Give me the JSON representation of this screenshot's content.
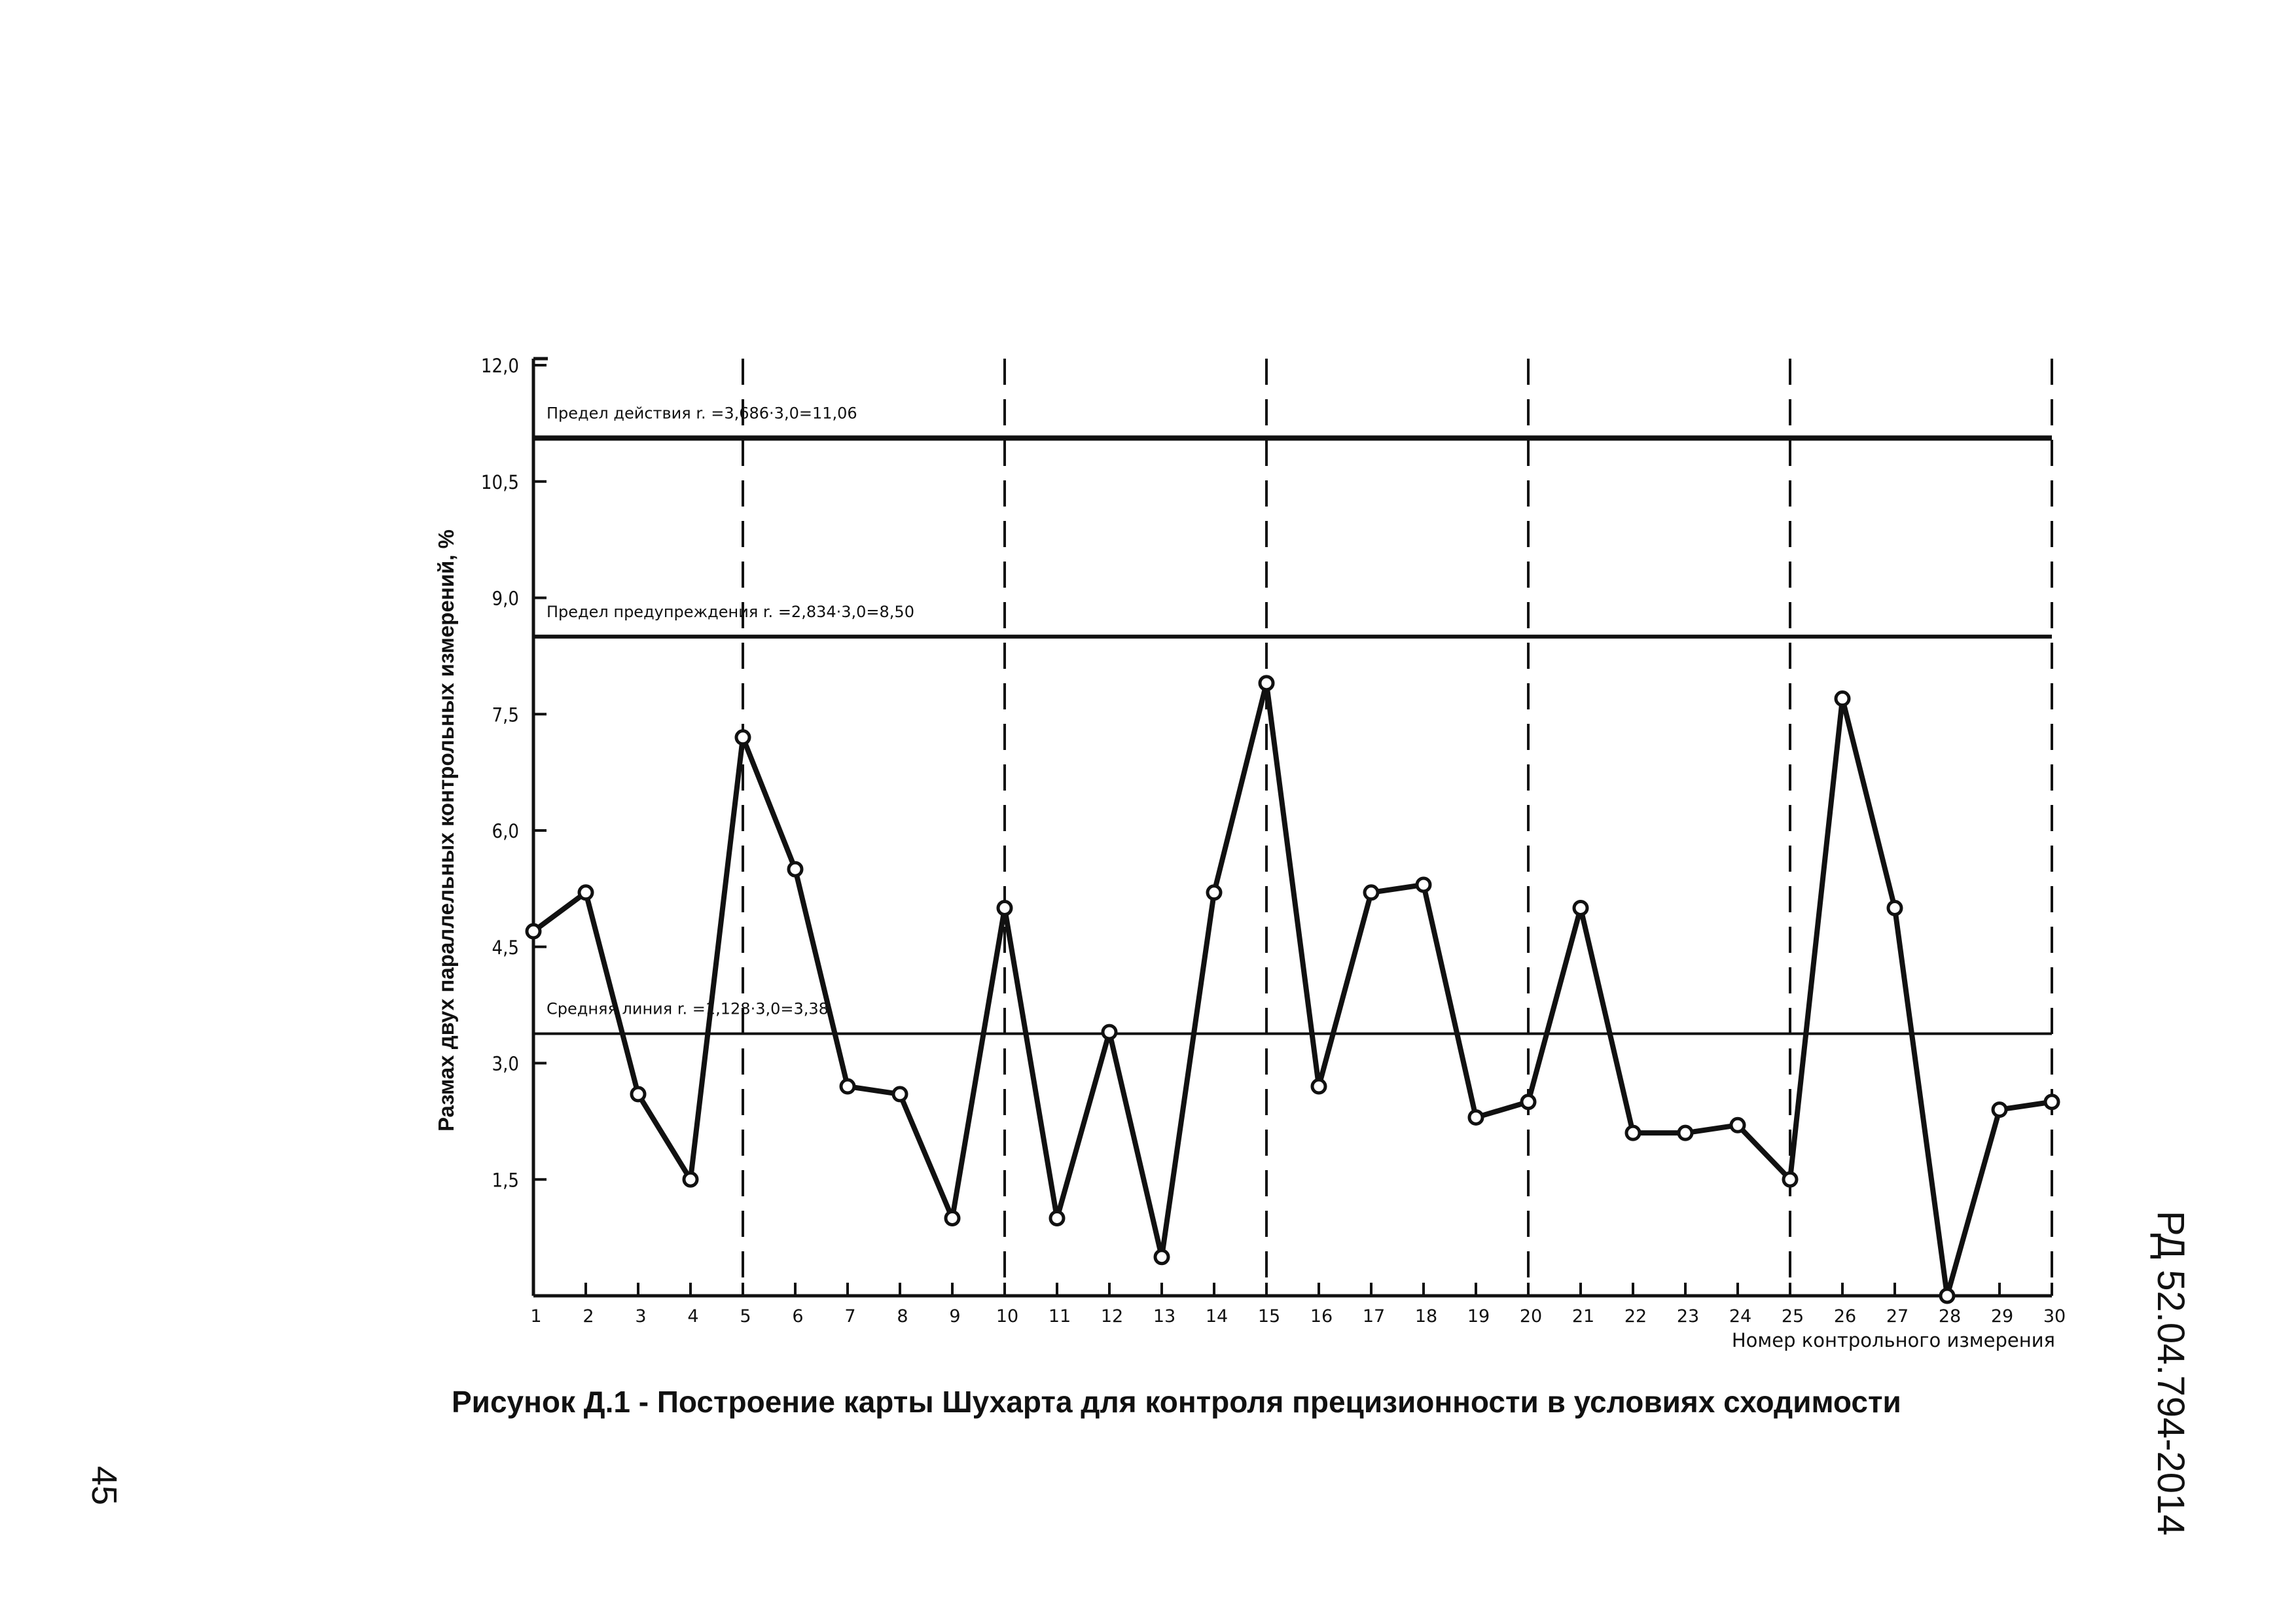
{
  "caption": "Рисунок  Д.1 - Построение карты Шухарта для контроля прецизионности в условиях сходимости",
  "doc_code": "РД 52.04.794-2014",
  "page_number": "45",
  "chart_data": {
    "type": "line",
    "xlabel": "Номер контрольного измерения",
    "ylabel": "Размах двух параллельных контрольных измерений, %",
    "xlim": [
      1,
      30
    ],
    "ylim": [
      0,
      12
    ],
    "x": [
      1,
      2,
      3,
      4,
      5,
      6,
      7,
      8,
      9,
      10,
      11,
      12,
      13,
      14,
      15,
      16,
      17,
      18,
      19,
      20,
      21,
      22,
      23,
      24,
      25,
      26,
      27,
      28,
      29,
      30
    ],
    "x_tick_labels": [
      "1",
      "2",
      "3",
      "4",
      "5",
      "6",
      "7",
      "8",
      "9",
      "10",
      "11",
      "12",
      "13",
      "14",
      "15",
      "16",
      "17",
      "18",
      "19",
      "20",
      "21",
      "22",
      "23",
      "24",
      "25",
      "26",
      "27",
      "28",
      "29",
      "30"
    ],
    "y_ticks": [
      {
        "value": 1.5,
        "label": "1,5"
      },
      {
        "value": 3.0,
        "label": "3,0"
      },
      {
        "value": 4.5,
        "label": "4,5"
      },
      {
        "value": 6.0,
        "label": "6,0"
      },
      {
        "value": 7.5,
        "label": "7,5"
      },
      {
        "value": 9.0,
        "label": "9,0"
      },
      {
        "value": 10.5,
        "label": "10,5"
      },
      {
        "value": 12.0,
        "label": "12,0"
      }
    ],
    "series": [
      {
        "values": [
          4.7,
          5.2,
          2.6,
          1.5,
          7.2,
          5.5,
          2.7,
          2.6,
          1.0,
          5.0,
          1.0,
          3.4,
          0.5,
          5.2,
          7.9,
          2.7,
          5.2,
          5.3,
          2.3,
          2.5,
          5.0,
          2.1,
          2.1,
          2.2,
          1.5,
          7.7,
          5.0,
          0.0,
          2.4,
          2.5
        ]
      }
    ],
    "reference_lines": [
      {
        "value": 11.06,
        "label": "Предел действия r. =3,686·3,0=11,06",
        "weight": "thick"
      },
      {
        "value": 8.5,
        "label": "Предел предупреждения r. =2,834·3,0=8,50",
        "weight": "medium"
      },
      {
        "value": 3.38,
        "label": "Средняя линия r. =1,128·3,0=3,38",
        "weight": "thin"
      }
    ],
    "dashed_verticals_at": [
      5,
      10,
      15,
      20,
      25,
      30
    ],
    "grid": false
  }
}
